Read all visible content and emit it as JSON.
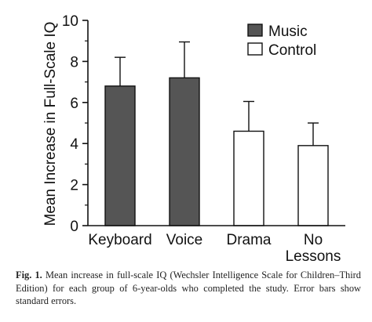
{
  "colors": {
    "music": "#555555",
    "control": "#ffffff",
    "stroke": "#111111"
  },
  "caption": {
    "label": "Fig. 1.",
    "text": "Mean increase in full-scale IQ (Wechsler Intelligence Scale for Children–Third Edition) for each group of 6-year-olds who completed the study. Error bars show standard errors."
  },
  "chart_data": {
    "type": "bar",
    "categories": [
      "Keyboard",
      "Voice",
      "Drama",
      "No Lessons"
    ],
    "groups": [
      "Music",
      "Music",
      "Control",
      "Control"
    ],
    "series": [
      {
        "name": "Mean Increase in Full-Scale IQ",
        "values": [
          6.8,
          7.2,
          4.6,
          3.9
        ],
        "errors": [
          1.4,
          1.75,
          1.45,
          1.1
        ]
      }
    ],
    "title": "",
    "xlabel": "",
    "ylabel": "Mean Increase in Full-Scale IQ",
    "ylim": [
      0,
      10
    ],
    "yticks": [
      0,
      2,
      4,
      6,
      8,
      10
    ],
    "legend": {
      "position": "top-right",
      "entries": [
        {
          "label": "Music",
          "group": "Music"
        },
        {
          "label": "Control",
          "group": "Control"
        }
      ]
    },
    "grid": false
  }
}
